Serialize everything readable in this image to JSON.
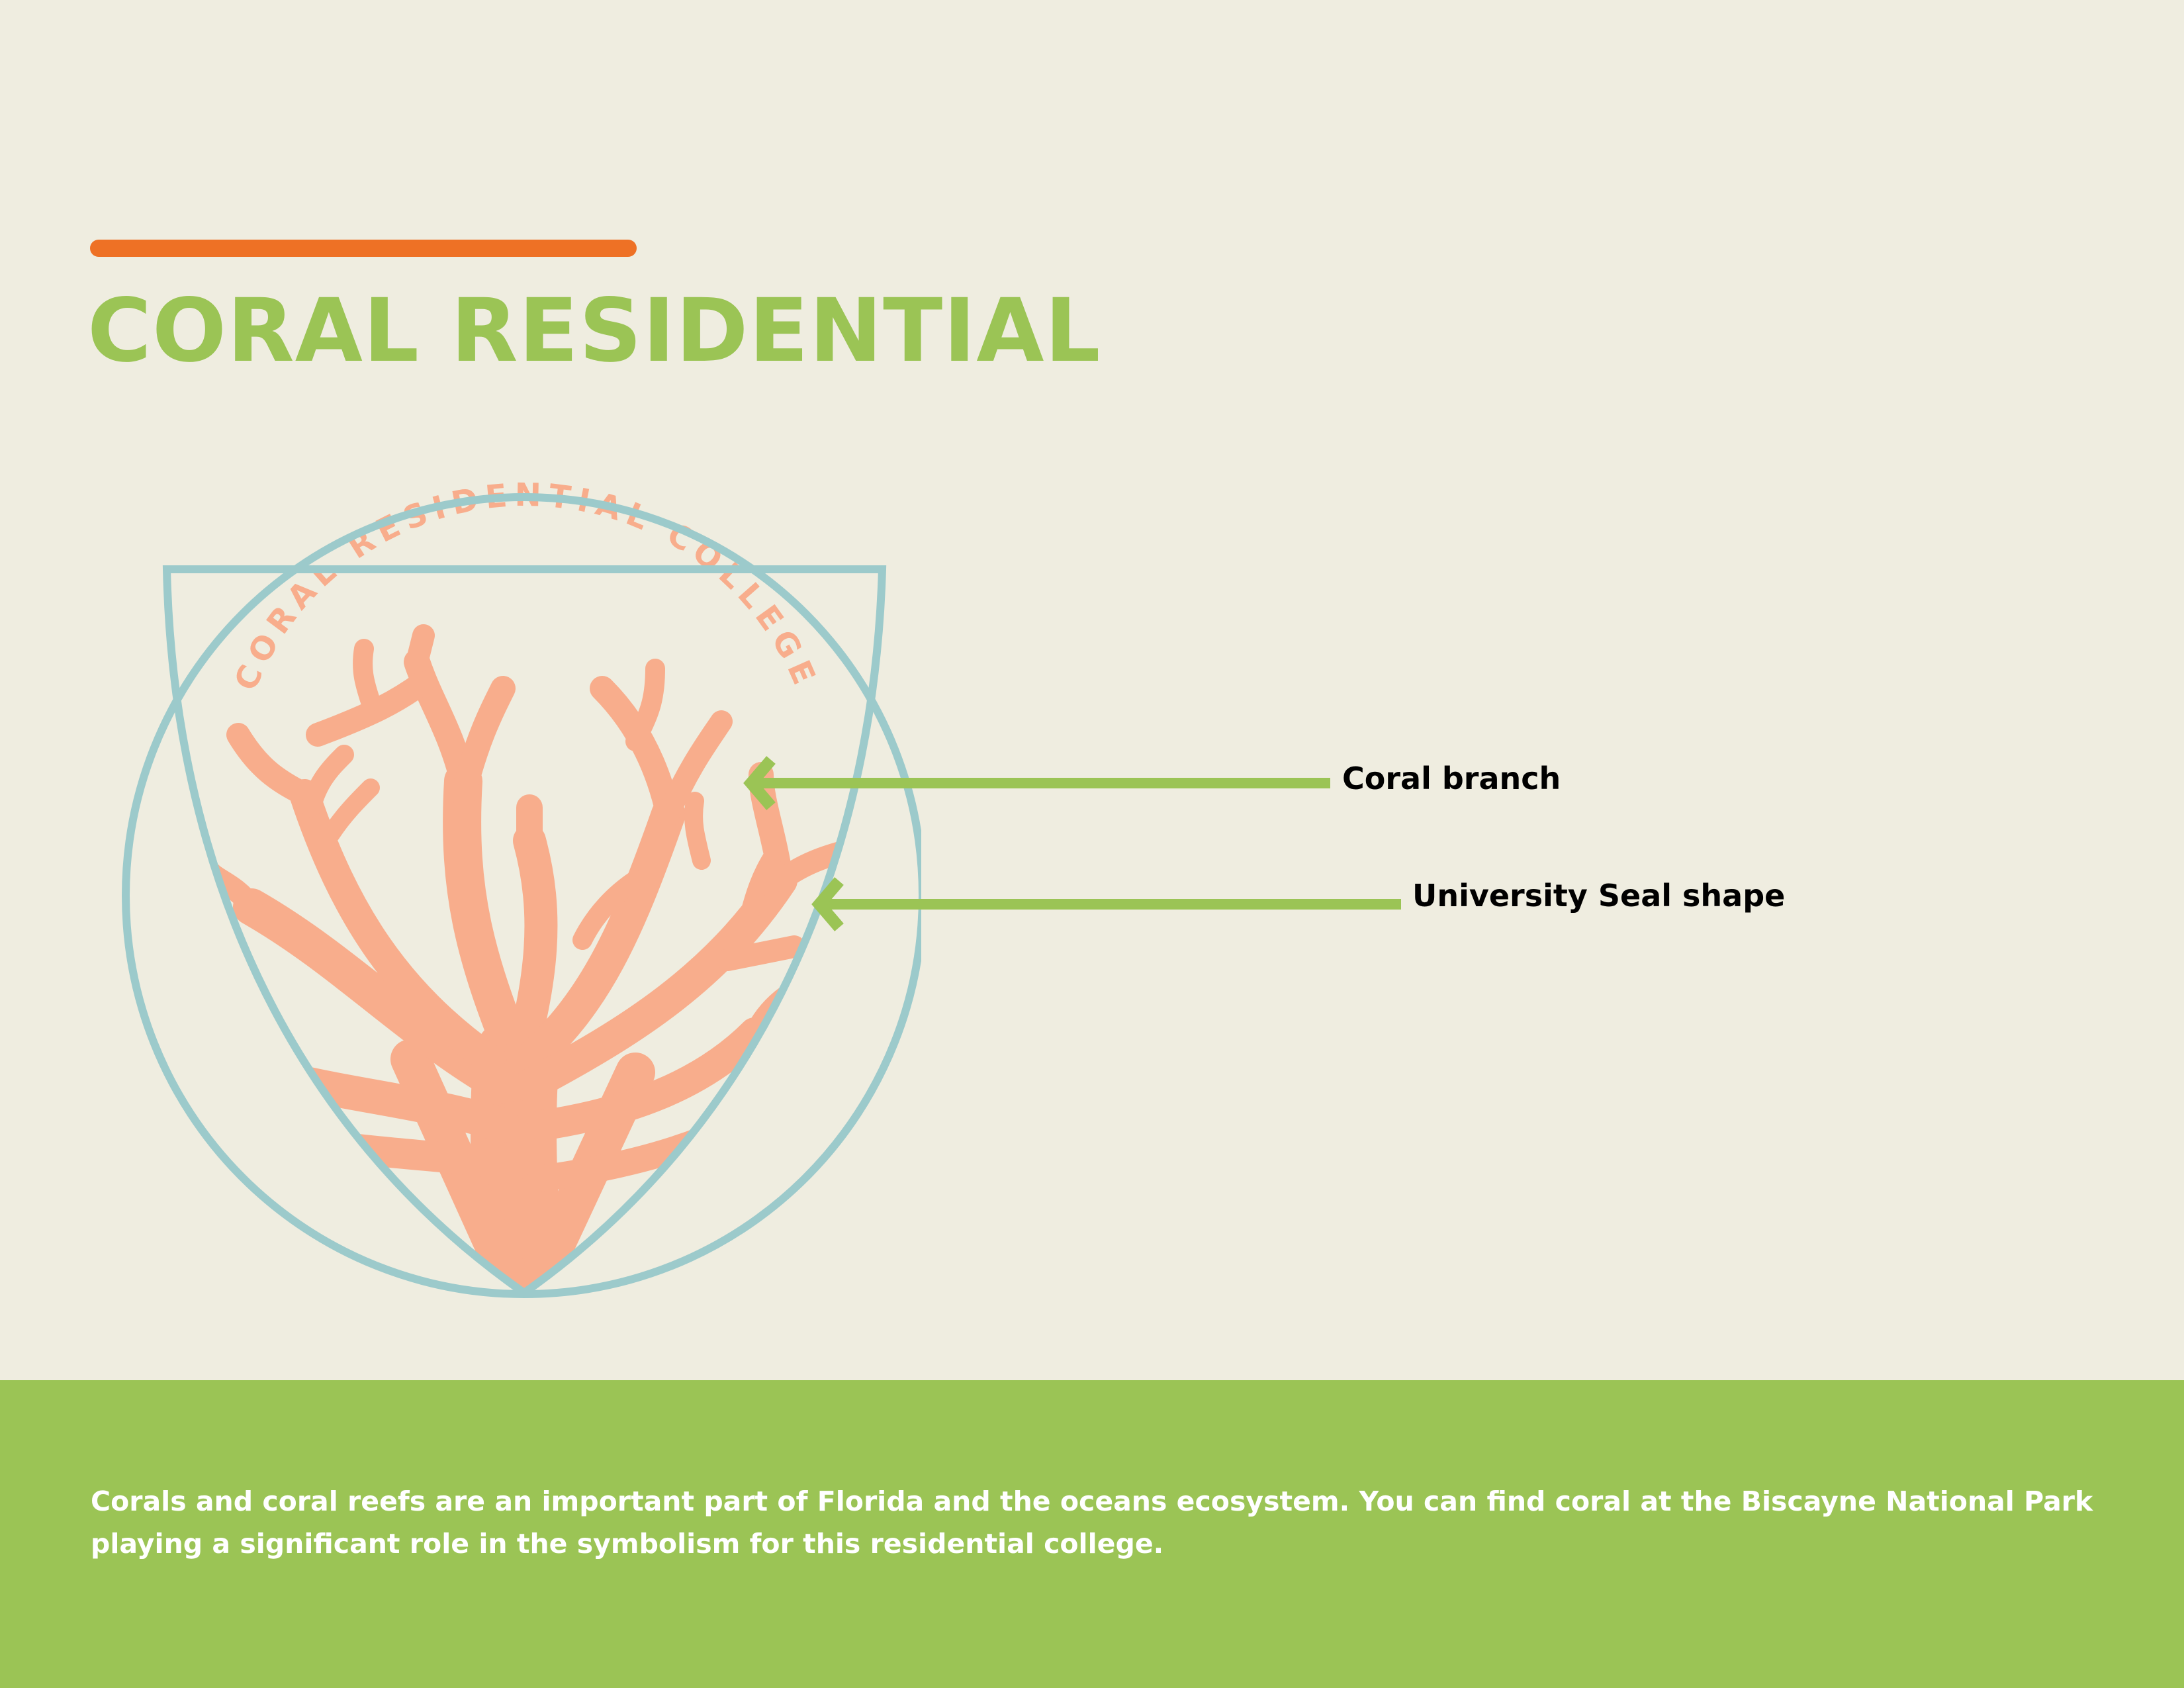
{
  "header": {
    "title": "CORAL RESIDENTIAL",
    "accent_color": "#ee7125",
    "title_color": "#9bc455"
  },
  "emblem": {
    "seal_text": "CORAL RESIDENTIAL COLLEGE",
    "coral_color": "#f8ad8c",
    "outline_color": "#9ccacb"
  },
  "callouts": [
    {
      "label": "Coral branch",
      "arrow_color": "#9bc455"
    },
    {
      "label": "University Seal shape",
      "arrow_color": "#9bc455"
    }
  ],
  "footer": {
    "background_color": "#9bc455",
    "text": "Corals and coral reefs are an important part of Florida and the oceans ecosystem. You can find coral at the Biscayne National Park playing a significant role in the symbolism for this residential college."
  }
}
